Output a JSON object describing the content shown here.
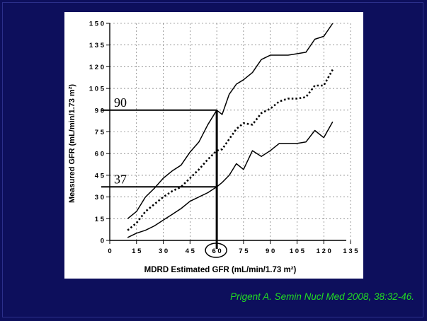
{
  "colors": {
    "slide_bg": "#0d0f5c",
    "panel_bg": "#ffffff",
    "citation": "#22dd22",
    "ink": "#000000"
  },
  "citation": "Prigent A. Semin Nucl Med 2008, 38:32-46.",
  "chart_data": {
    "type": "line",
    "xlabel": "MDRD Estimated GFR (mL/min/1.73 m²)",
    "ylabel": "Measured GFR (mL/min/1.73 m²)",
    "xlim": [
      0,
      135
    ],
    "ylim": [
      0,
      150
    ],
    "x_ticks": [
      "0",
      "1 5",
      "3 0",
      "4 5",
      "6 0",
      "7 5",
      "9 0",
      "1 0 5",
      "1 2 0",
      "1 3 5"
    ],
    "y_ticks": [
      "0",
      "1 5",
      "3 0",
      "4 5",
      "6 0",
      "7 5",
      "9 0",
      "1 0 5",
      "1 2 0",
      "1 3 5",
      "1 5 0"
    ],
    "grid": true,
    "series": [
      {
        "style": "solid",
        "x": [
          10,
          15,
          20,
          25,
          30,
          35,
          40,
          45,
          50,
          55,
          60,
          63,
          67,
          71,
          75,
          80,
          85,
          90,
          95,
          100,
          105,
          110,
          115,
          120,
          125
        ],
        "y": [
          15,
          20,
          30,
          36,
          43,
          48,
          52,
          61,
          68,
          80,
          90,
          87,
          101,
          108,
          111,
          116,
          125,
          128,
          128,
          128,
          129,
          130,
          139,
          141,
          150
        ]
      },
      {
        "style": "dotted",
        "x": [
          10,
          15,
          20,
          25,
          30,
          35,
          40,
          45,
          50,
          55,
          60,
          63,
          67,
          71,
          75,
          80,
          85,
          90,
          95,
          100,
          105,
          110,
          115,
          120,
          125
        ],
        "y": [
          7,
          12,
          20,
          25,
          30,
          34,
          37,
          43,
          49,
          56,
          62,
          63,
          70,
          77,
          81,
          80,
          88,
          91,
          96,
          98,
          98,
          99,
          107,
          107,
          118
        ]
      },
      {
        "style": "solid",
        "x": [
          10,
          15,
          20,
          25,
          30,
          35,
          40,
          45,
          50,
          55,
          60,
          63,
          67,
          71,
          75,
          80,
          85,
          90,
          95,
          100,
          105,
          110,
          115,
          120,
          125
        ],
        "y": [
          2,
          5,
          7,
          10,
          14,
          18,
          22,
          27,
          30,
          33,
          37,
          40,
          45,
          53,
          49,
          62,
          58,
          62,
          67,
          67,
          67,
          68,
          76,
          71,
          82
        ]
      }
    ],
    "annotations": [
      {
        "text": "90",
        "y": 90,
        "x_from": 0,
        "x_to": 60
      },
      {
        "text": "37",
        "y": 37,
        "x_from": 0,
        "x_to": 60
      },
      {
        "text": "",
        "x": 60,
        "y_from": 0,
        "y_to": 90,
        "circled_tick": "6 0"
      }
    ]
  }
}
